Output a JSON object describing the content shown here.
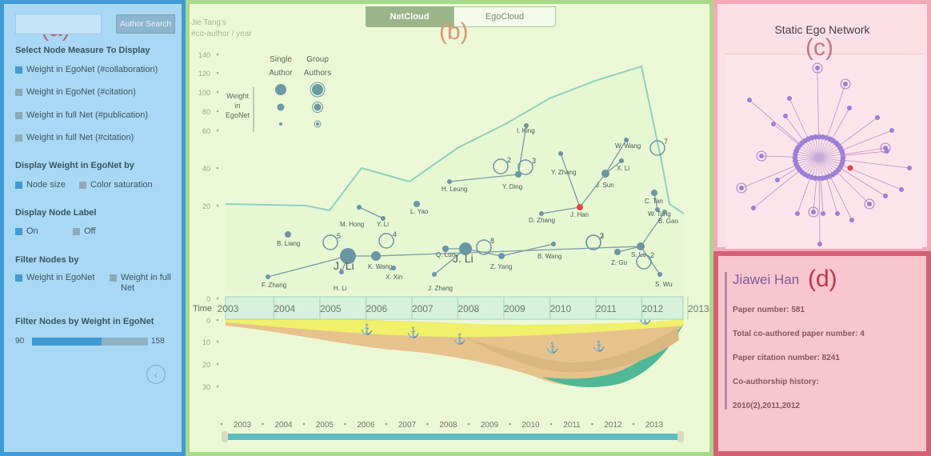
{
  "panel_labels": {
    "a": "(a)",
    "b": "(b)",
    "c": "(c)",
    "d": "(d)"
  },
  "sidebar": {
    "search_value": "",
    "search_button": "Author Search",
    "measure_title": "Select Node Measure To Display",
    "measures": [
      {
        "label": "Weight in EgoNet (#collaboration)",
        "checked": true
      },
      {
        "label": "Weight in EgoNet (#citation)",
        "checked": false
      },
      {
        "label": "Weight in full Net (#publication)",
        "checked": false
      },
      {
        "label": "Weight in full Net (#citation)",
        "checked": false
      }
    ],
    "display_weight_title": "Display Weight in EgoNet by",
    "display_weight_opts": [
      {
        "label": "Node size",
        "checked": true
      },
      {
        "label": "Color saturation",
        "checked": false
      }
    ],
    "label_title": "Display Node Label",
    "label_opts": [
      {
        "label": "On",
        "checked": true
      },
      {
        "label": "Off",
        "checked": false
      }
    ],
    "filter_title": "Filter Nodes by",
    "filter_opts": [
      {
        "label": "Weight in EgoNet",
        "checked": true
      },
      {
        "label": "Weight in full Net",
        "checked": false
      }
    ],
    "weight_filter_title": "Filter Nodes by Weight in EgoNet",
    "slider_min": "90",
    "slider_max": "158",
    "slider_fraction": 0.6,
    "collapse_icon": "chevron-left-icon"
  },
  "tabs": {
    "netcloud": "NetCloud",
    "egocloud": "EgoCloud"
  },
  "chart": {
    "ylabel_line1": "Jie Tang's",
    "ylabel_line2": "#co-author / year",
    "y_ticks": [
      "140",
      "120",
      "100",
      "80",
      "60",
      "40",
      "20",
      "0"
    ],
    "lower_ticks": [
      "0",
      "10",
      "20",
      "30"
    ],
    "time_label": "Time",
    "years": [
      "2003",
      "2004",
      "2005",
      "2006",
      "2007",
      "2008",
      "2009",
      "2010",
      "2011",
      "2012",
      "2013"
    ],
    "legend": {
      "single": "Single",
      "single2": "Author",
      "group": "Group",
      "group2": "Authors",
      "w1": "Weight",
      "w2": "in",
      "w3": "EgoNet"
    },
    "authors": [
      "F. Zhang",
      "B. Liang",
      "H. Li",
      "J. Li",
      "K. Wang",
      "X. Xin",
      "M. Hong",
      "Y. Li",
      "L. Yao",
      "H. Leung",
      "Q. Luo",
      "J. Li",
      "J. Zhang",
      "Z. Yang",
      "B. Wang",
      "I. King",
      "Y. Ding",
      "Y. Zhang",
      "J. Sun",
      "D. Zhang",
      "J. Han",
      "W. Wang",
      "X. Li",
      "Z. Gu",
      "S. Lu",
      "C. Tan",
      "W. Tang",
      "B. Gao",
      "S. Wu"
    ],
    "group_counts": [
      "5",
      "4",
      "8",
      "2",
      "3",
      "3",
      "7",
      "7",
      "2"
    ]
  },
  "ego": {
    "title": "Static Ego Network",
    "highlight_color": "#e04848",
    "node_color": "#9b7fd6"
  },
  "detail": {
    "name": "Jiawei Han",
    "paper_number": "Paper number: 581",
    "coauth": "Total co-authored paper number: 4",
    "citation": "Paper citation number: 8241",
    "history_title": "Co-authorship history:",
    "history": "2010(2),2011,2012"
  }
}
